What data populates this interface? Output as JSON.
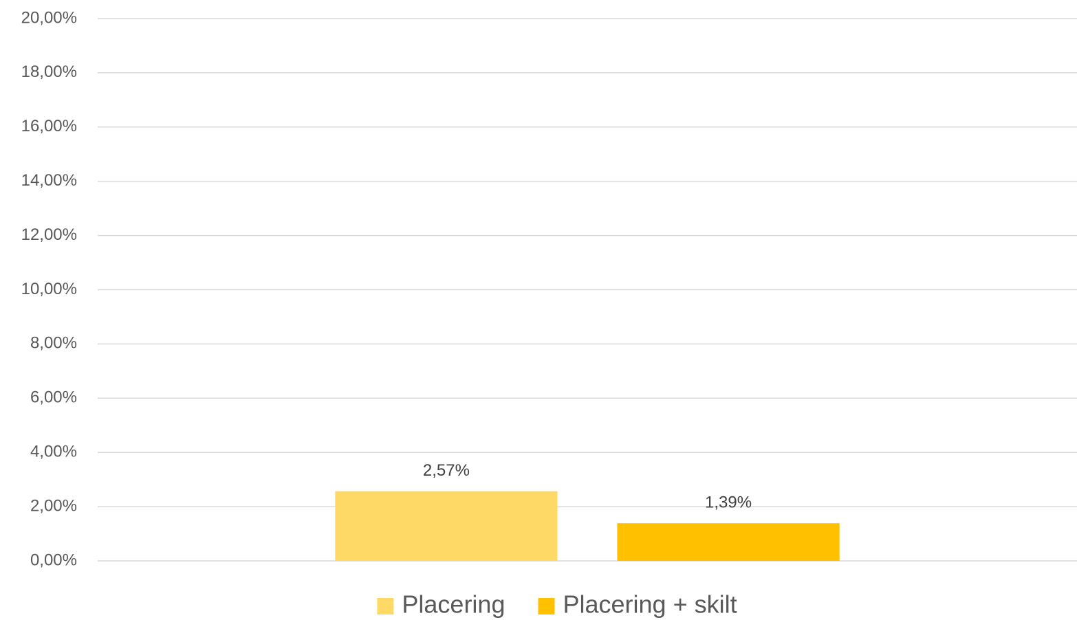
{
  "chart_data": {
    "type": "bar",
    "categories": [
      null
    ],
    "series": [
      {
        "name": "Placering",
        "color": "#ffd966",
        "values": [
          2.57
        ],
        "value_labels": [
          "2,57%"
        ]
      },
      {
        "name": "Placering + skilt",
        "color": "#ffc000",
        "values": [
          1.39
        ],
        "value_labels": [
          "1,39%"
        ]
      }
    ],
    "ylim": [
      0,
      20
    ],
    "yticks": [
      {
        "value": 0,
        "label": "0,00%"
      },
      {
        "value": 2,
        "label": "2,00%"
      },
      {
        "value": 4,
        "label": "4,00%"
      },
      {
        "value": 6,
        "label": "6,00%"
      },
      {
        "value": 8,
        "label": "8,00%"
      },
      {
        "value": 10,
        "label": "10,00%"
      },
      {
        "value": 12,
        "label": "12,00%"
      },
      {
        "value": 14,
        "label": "14,00%"
      },
      {
        "value": 16,
        "label": "16,00%"
      },
      {
        "value": 18,
        "label": "18,00%"
      },
      {
        "value": 20,
        "label": "20,00%"
      }
    ],
    "grid": true,
    "legend": "bottom"
  }
}
